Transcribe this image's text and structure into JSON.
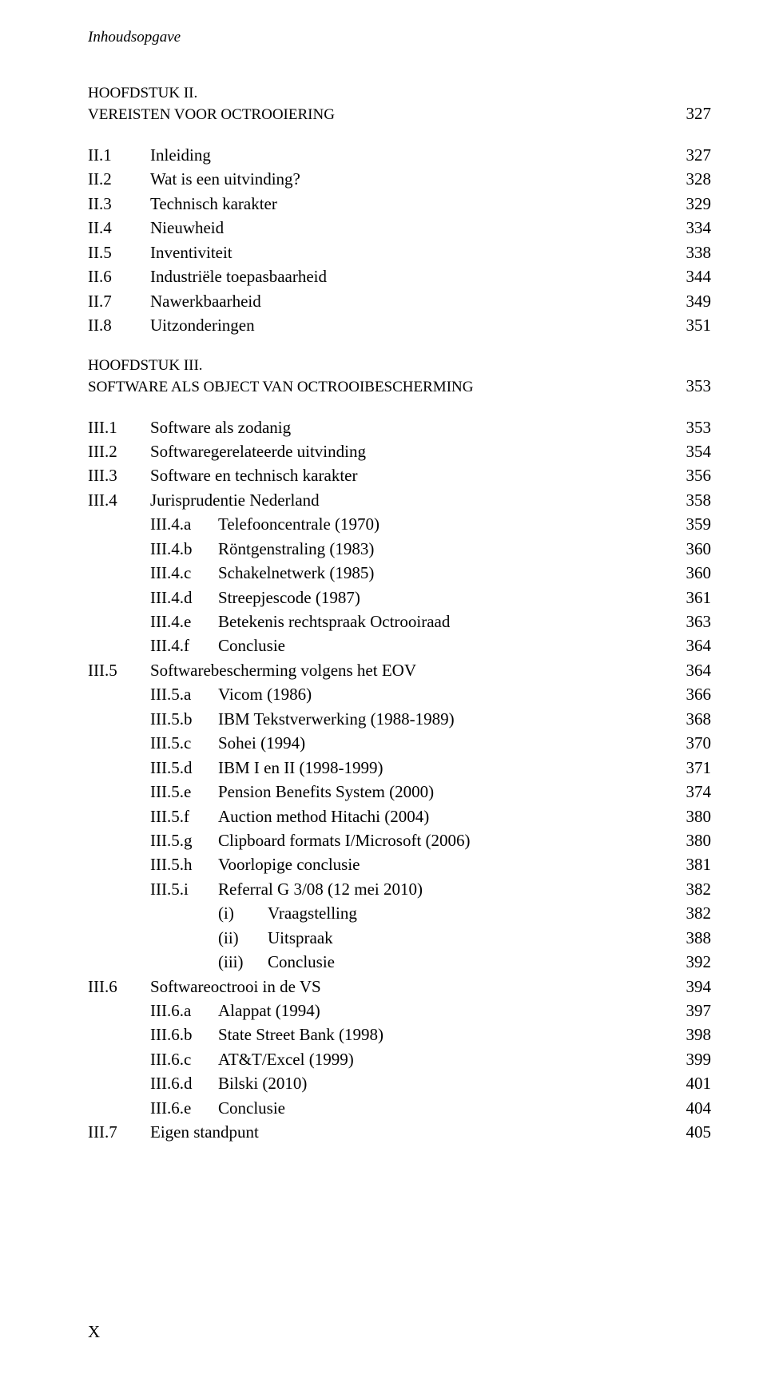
{
  "running_head": "Inhoudsopgave",
  "chapter2": {
    "heading": "HOOFDSTUK II.",
    "title": "VEREISTEN VOOR OCTROOIERING",
    "page": "327",
    "items": [
      {
        "num": "II.1",
        "label": "Inleiding",
        "page": "327"
      },
      {
        "num": "II.2",
        "label": "Wat is een uitvinding?",
        "page": "328"
      },
      {
        "num": "II.3",
        "label": "Technisch karakter",
        "page": "329"
      },
      {
        "num": "II.4",
        "label": "Nieuwheid",
        "page": "334"
      },
      {
        "num": "II.5",
        "label": "Inventiviteit",
        "page": "338"
      },
      {
        "num": "II.6",
        "label": "Industriële toepasbaarheid",
        "page": "344"
      },
      {
        "num": "II.7",
        "label": "Nawerkbaarheid",
        "page": "349"
      },
      {
        "num": "II.8",
        "label": "Uitzonderingen",
        "page": "351"
      }
    ]
  },
  "chapter3": {
    "heading": "HOOFDSTUK III.",
    "title": "SOFTWARE ALS OBJECT VAN OCTROOIBESCHERMING",
    "page": "353",
    "rows": [
      {
        "type": "l1",
        "num": "III.1",
        "label": "Software als zodanig",
        "page": "353"
      },
      {
        "type": "l1",
        "num": "III.2",
        "label": "Softwaregerelateerde uitvinding",
        "page": "354"
      },
      {
        "type": "l1",
        "num": "III.3",
        "label": "Software en technisch karakter",
        "page": "356"
      },
      {
        "type": "l1",
        "num": "III.4",
        "label": "Jurisprudentie Nederland",
        "page": "358"
      },
      {
        "type": "l2",
        "num": "III.4.a",
        "label": "Telefooncentrale (1970)",
        "page": "359"
      },
      {
        "type": "l2",
        "num": "III.4.b",
        "label": "Röntgenstraling (1983)",
        "page": "360"
      },
      {
        "type": "l2",
        "num": "III.4.c",
        "label": "Schakelnetwerk (1985)",
        "page": "360"
      },
      {
        "type": "l2",
        "num": "III.4.d",
        "label": "Streepjescode (1987)",
        "page": "361"
      },
      {
        "type": "l2",
        "num": "III.4.e",
        "label": "Betekenis rechtspraak Octrooiraad",
        "page": "363"
      },
      {
        "type": "l2",
        "num": "III.4.f",
        "label": "Conclusie",
        "page": "364"
      },
      {
        "type": "l1",
        "num": "III.5",
        "label": "Softwarebescherming volgens het EOV",
        "page": "364"
      },
      {
        "type": "l2",
        "num": "III.5.a",
        "label": "Vicom (1986)",
        "page": "366"
      },
      {
        "type": "l2",
        "num": "III.5.b",
        "label": "IBM Tekstverwerking (1988-1989)",
        "page": "368"
      },
      {
        "type": "l2",
        "num": "III.5.c",
        "label": "Sohei (1994)",
        "page": "370"
      },
      {
        "type": "l2",
        "num": "III.5.d",
        "label": "IBM I en II (1998-1999)",
        "page": "371"
      },
      {
        "type": "l2",
        "num": "III.5.e",
        "label": "Pension Benefits System (2000)",
        "page": "374"
      },
      {
        "type": "l2",
        "num": "III.5.f",
        "label": "Auction method Hitachi (2004)",
        "page": "380"
      },
      {
        "type": "l2",
        "num": "III.5.g",
        "label": "Clipboard formats I/Microsoft (2006)",
        "page": "380"
      },
      {
        "type": "l2",
        "num": "III.5.h",
        "label": "Voorlopige conclusie",
        "page": "381"
      },
      {
        "type": "l2",
        "num": "III.5.i",
        "label": "Referral G 3/08 (12 mei 2010)",
        "page": "382"
      },
      {
        "type": "l3",
        "num": "(i)",
        "label": "Vraagstelling",
        "page": "382"
      },
      {
        "type": "l3",
        "num": "(ii)",
        "label": "Uitspraak",
        "page": "388"
      },
      {
        "type": "l3",
        "num": "(iii)",
        "label": "Conclusie",
        "page": "392"
      },
      {
        "type": "l1",
        "num": "III.6",
        "label": "Softwareoctrooi in de VS",
        "page": "394"
      },
      {
        "type": "l2",
        "num": "III.6.a",
        "label": "Alappat (1994)",
        "page": "397"
      },
      {
        "type": "l2",
        "num": "III.6.b",
        "label": "State Street Bank (1998)",
        "page": "398"
      },
      {
        "type": "l2",
        "num": "III.6.c",
        "label": "AT&T/Excel (1999)",
        "page": "399"
      },
      {
        "type": "l2",
        "num": "III.6.d",
        "label": "Bilski (2010)",
        "page": "401"
      },
      {
        "type": "l2",
        "num": "III.6.e",
        "label": "Conclusie",
        "page": "404"
      },
      {
        "type": "l1",
        "num": "III.7",
        "label": "Eigen standpunt",
        "page": "405"
      }
    ]
  },
  "page_number": "X"
}
